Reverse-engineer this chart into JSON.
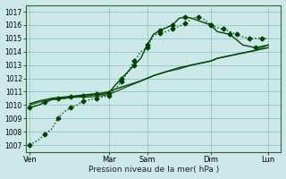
{
  "xlabel": "Pression niveau de la mer( hPa )",
  "ylim": [
    1006.5,
    1017.5
  ],
  "yticks": [
    1007,
    1008,
    1009,
    1010,
    1011,
    1012,
    1013,
    1014,
    1015,
    1016,
    1017
  ],
  "xlim": [
    0,
    20
  ],
  "day_labels": [
    "Ven",
    "Mar",
    "Sam",
    "Dim",
    "Lun"
  ],
  "day_positions": [
    0.3,
    6.5,
    9.5,
    14.5,
    19.0
  ],
  "vline_positions": [
    0.3,
    6.5,
    9.5,
    14.5,
    19.0
  ],
  "background_color": "#cce8e8",
  "grid_color": "#99cccc",
  "dark_green": "#004400",
  "mid_green": "#226622",
  "series1_x": [
    0.3,
    1.0,
    1.5,
    2.0,
    2.5,
    3.0,
    3.5,
    4.0,
    4.5,
    5.0,
    5.5,
    6.0,
    6.5,
    7.0,
    7.5,
    8.0,
    8.5,
    9.0,
    9.5,
    10.0,
    10.5,
    11.0,
    11.5,
    12.0,
    12.5,
    13.0,
    13.5,
    14.0,
    14.5,
    15.0,
    15.5,
    16.0,
    16.5,
    17.0,
    17.5,
    18.0,
    18.5,
    19.0
  ],
  "series1_y": [
    1007.0,
    1007.4,
    1007.8,
    1008.2,
    1009.0,
    1009.5,
    1009.8,
    1010.0,
    1010.3,
    1010.4,
    1010.5,
    1010.6,
    1010.7,
    1011.2,
    1011.8,
    1012.5,
    1013.3,
    1014.0,
    1014.3,
    1015.2,
    1015.4,
    1015.5,
    1015.7,
    1015.9,
    1016.1,
    1016.5,
    1016.6,
    1016.4,
    1016.0,
    1015.8,
    1015.7,
    1015.5,
    1015.3,
    1015.1,
    1015.0,
    1015.0,
    1015.0,
    1015.0
  ],
  "series2_x": [
    0.3,
    1.0,
    2.0,
    3.0,
    4.0,
    5.0,
    6.0,
    6.5,
    7.0,
    8.0,
    9.0,
    9.5,
    10.0,
    11.0,
    12.0,
    13.0,
    14.0,
    14.5,
    15.0,
    16.0,
    17.0,
    18.0,
    19.0
  ],
  "series2_y": [
    1010.0,
    1010.2,
    1010.4,
    1010.5,
    1010.6,
    1010.6,
    1010.7,
    1010.8,
    1011.0,
    1011.4,
    1011.8,
    1012.0,
    1012.2,
    1012.5,
    1012.7,
    1013.0,
    1013.2,
    1013.3,
    1013.5,
    1013.7,
    1013.9,
    1014.1,
    1014.5
  ],
  "series3_x": [
    0.3,
    1.0,
    2.0,
    3.0,
    4.0,
    5.0,
    6.0,
    6.5,
    7.0,
    8.0,
    9.0,
    9.5,
    10.0,
    11.0,
    12.0,
    13.0,
    14.0,
    14.5,
    15.0,
    16.0,
    17.0,
    18.0,
    19.0
  ],
  "series3_y": [
    1010.1,
    1010.3,
    1010.5,
    1010.6,
    1010.7,
    1010.8,
    1010.9,
    1011.0,
    1011.2,
    1011.5,
    1011.8,
    1012.0,
    1012.2,
    1012.5,
    1012.8,
    1013.0,
    1013.2,
    1013.3,
    1013.5,
    1013.7,
    1013.9,
    1014.1,
    1014.3
  ],
  "series4_x": [
    0.3,
    1.0,
    1.5,
    2.0,
    2.5,
    3.0,
    3.5,
    4.0,
    4.5,
    5.0,
    5.5,
    6.0,
    6.5,
    7.0,
    7.5,
    8.0,
    8.5,
    9.0,
    9.5,
    10.0,
    10.5,
    11.0,
    11.5,
    12.0,
    12.5,
    13.0,
    14.5,
    15.0,
    16.0,
    17.0,
    18.0,
    19.0
  ],
  "series4_y": [
    1009.8,
    1010.0,
    1010.2,
    1010.4,
    1010.5,
    1010.5,
    1010.6,
    1010.6,
    1010.7,
    1010.7,
    1010.8,
    1010.8,
    1010.9,
    1011.5,
    1012.0,
    1012.5,
    1013.0,
    1013.5,
    1014.5,
    1015.3,
    1015.6,
    1015.8,
    1016.0,
    1016.5,
    1016.6,
    1016.5,
    1016.0,
    1015.5,
    1015.3,
    1014.5,
    1014.3,
    1014.5
  ]
}
